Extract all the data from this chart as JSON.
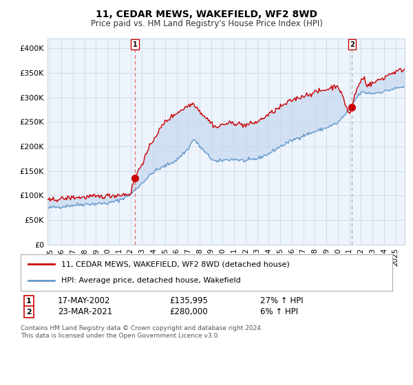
{
  "title": "11, CEDAR MEWS, WAKEFIELD, WF2 8WD",
  "subtitle": "Price paid vs. HM Land Registry's House Price Index (HPI)",
  "legend_line1": "11, CEDAR MEWS, WAKEFIELD, WF2 8WD (detached house)",
  "legend_line2": "HPI: Average price, detached house, Wakefield",
  "annotation1_label": "1",
  "annotation1_date": "17-MAY-2002",
  "annotation1_price": "£135,995",
  "annotation1_hpi": "27% ↑ HPI",
  "annotation2_label": "2",
  "annotation2_date": "23-MAR-2021",
  "annotation2_price": "£280,000",
  "annotation2_hpi": "6% ↑ HPI",
  "footer": "Contains HM Land Registry data © Crown copyright and database right 2024.\nThis data is licensed under the Open Government Licence v3.0.",
  "ylim": [
    0,
    420000
  ],
  "yticks": [
    0,
    50000,
    100000,
    150000,
    200000,
    250000,
    300000,
    350000,
    400000
  ],
  "ytick_labels": [
    "£0",
    "£50K",
    "£100K",
    "£150K",
    "£200K",
    "£250K",
    "£300K",
    "£350K",
    "£400K"
  ],
  "background_color": "#ffffff",
  "plot_bg_color": "#eef4fb",
  "grid_color": "#c8d8e8",
  "hpi_color": "#6699cc",
  "hpi_fill_color": "#c5d8ef",
  "price_color": "#cc0000",
  "vline1_color": "#dd6666",
  "vline2_color": "#aaaaaa",
  "purchase1_x": 2002.38,
  "purchase1_y": 135995,
  "purchase2_x": 2021.22,
  "purchase2_y": 280000,
  "xmin": 1994.8,
  "xmax": 2025.8,
  "xtick_years": [
    1995,
    1996,
    1997,
    1998,
    1999,
    2000,
    2001,
    2002,
    2003,
    2004,
    2005,
    2006,
    2007,
    2008,
    2009,
    2010,
    2011,
    2012,
    2013,
    2014,
    2015,
    2016,
    2017,
    2018,
    2019,
    2020,
    2021,
    2022,
    2023,
    2024,
    2025
  ]
}
